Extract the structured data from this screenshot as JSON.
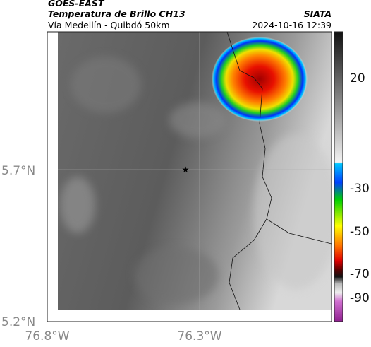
{
  "header": {
    "satellite": "GOES-EAST",
    "product": "Temperatura de Brillo CH13",
    "region": "Vía Medellín - Quibdó 50km",
    "source": "SIATA",
    "timestamp": "2024-10-16 12:39"
  },
  "map": {
    "lat_labels": [
      "5.7°N",
      "5.2°N"
    ],
    "lon_labels": [
      "76.8°W",
      "76.3°W"
    ]
  },
  "colorbar": {
    "ticks": [
      20,
      -30,
      -50,
      -70,
      -90
    ]
  }
}
